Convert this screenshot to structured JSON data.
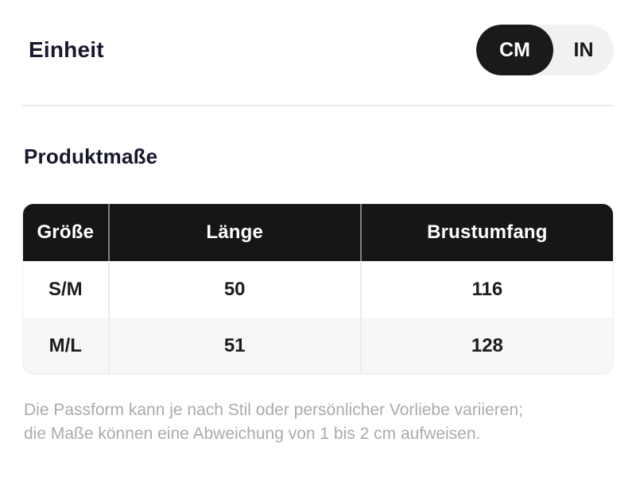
{
  "unit": {
    "heading": "Einheit",
    "selected": "CM",
    "options": [
      {
        "label": "CM",
        "selected": true
      },
      {
        "label": "IN",
        "selected": false
      }
    ]
  },
  "measurements": {
    "heading": "Produktmaße",
    "table": {
      "headers": [
        "Größe",
        "Länge",
        "Brustumfang"
      ],
      "rows": [
        [
          "S/M",
          "50",
          "116"
        ],
        [
          "M/L",
          "51",
          "128"
        ]
      ]
    },
    "note_lines": [
      "Die Passform kann je nach Stil oder persönlicher Vorliebe variieren;",
      "die Maße können eine Abweichung von 1 bis 2 cm aufweisen."
    ]
  },
  "colors": {
    "header_bg": "#161618",
    "toggle_active_bg": "#1a1a1c",
    "toggle_bg": "#f1f1f3",
    "row_alt_bg": "#f7f7f8",
    "divider": "#ededed",
    "note_text": "#ababab",
    "heading_text": "#17182b"
  }
}
